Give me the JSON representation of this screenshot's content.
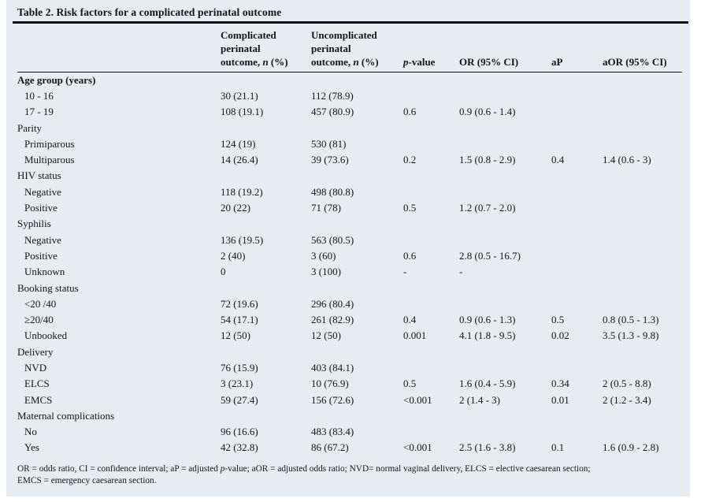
{
  "title": "Table 2. Risk factors for a complicated perinatal outcome",
  "colors": {
    "panel_background": "#e9ebf3",
    "text": "#14141e",
    "rule": "#101018"
  },
  "table": {
    "columns": [
      {
        "id": "risk-factor",
        "lines": [
          [
            ""
          ]
        ]
      },
      {
        "id": "complicated",
        "lines": [
          [
            "Complicated"
          ],
          [
            "perinatal"
          ],
          [
            "outcome, ",
            {
              "i": "n"
            },
            " (%)"
          ]
        ]
      },
      {
        "id": "uncomplicated",
        "lines": [
          [
            "Uncomplicated"
          ],
          [
            "perinatal"
          ],
          [
            "outcome, ",
            {
              "i": "n"
            },
            " (%)"
          ]
        ]
      },
      {
        "id": "p-value",
        "lines": [
          [
            {
              "i": "p"
            },
            "-value"
          ]
        ]
      },
      {
        "id": "or",
        "lines": [
          [
            "OR (95% CI)"
          ]
        ]
      },
      {
        "id": "ap",
        "lines": [
          [
            "aP"
          ]
        ]
      },
      {
        "id": "aor",
        "lines": [
          [
            "aOR (95% CI)"
          ]
        ]
      }
    ],
    "rows": [
      {
        "label": "Age group (years)",
        "indent": false,
        "bold": true,
        "values": [
          "",
          "",
          "",
          "",
          "",
          ""
        ]
      },
      {
        "label": "10 - 16",
        "indent": true,
        "bold": false,
        "values": [
          "30 (21.1)",
          "112 (78.9)",
          "",
          "",
          "",
          ""
        ]
      },
      {
        "label": "17 - 19",
        "indent": true,
        "bold": false,
        "values": [
          "108 (19.1)",
          "457 (80.9)",
          "0.6",
          "0.9 (0.6 - 1.4)",
          "",
          ""
        ]
      },
      {
        "label": "Parity",
        "indent": false,
        "bold": false,
        "values": [
          "",
          "",
          "",
          "",
          "",
          ""
        ]
      },
      {
        "label": "Primiparous",
        "indent": true,
        "bold": false,
        "values": [
          "124 (19)",
          "530 (81)",
          "",
          "",
          "",
          ""
        ]
      },
      {
        "label": "Multiparous",
        "indent": true,
        "bold": false,
        "values": [
          "14 (26.4)",
          "39 (73.6)",
          "0.2",
          "1.5 (0.8 - 2.9)",
          "0.4",
          "1.4 (0.6 - 3)"
        ]
      },
      {
        "label": "HIV status",
        "indent": false,
        "bold": false,
        "values": [
          "",
          "",
          "",
          "",
          "",
          ""
        ]
      },
      {
        "label": "Negative",
        "indent": true,
        "bold": false,
        "values": [
          "118 (19.2)",
          "498 (80.8)",
          "",
          "",
          "",
          ""
        ]
      },
      {
        "label": "Positive",
        "indent": true,
        "bold": false,
        "values": [
          "20 (22)",
          "71 (78)",
          "0.5",
          "1.2 (0.7 - 2.0)",
          "",
          ""
        ]
      },
      {
        "label": "Syphilis",
        "indent": false,
        "bold": false,
        "values": [
          "",
          "",
          "",
          "",
          "",
          ""
        ]
      },
      {
        "label": "Negative",
        "indent": true,
        "bold": false,
        "values": [
          "136 (19.5)",
          "563 (80.5)",
          "",
          "",
          "",
          ""
        ]
      },
      {
        "label": "Positive",
        "indent": true,
        "bold": false,
        "values": [
          "2 (40)",
          "3 (60)",
          "0.6",
          "2.8 (0.5 - 16.7)",
          "",
          ""
        ]
      },
      {
        "label": "Unknown",
        "indent": true,
        "bold": false,
        "values": [
          "0",
          "3 (100)",
          "-",
          "-",
          "",
          ""
        ]
      },
      {
        "label": "Booking status",
        "indent": false,
        "bold": false,
        "values": [
          "",
          "",
          "",
          "",
          "",
          ""
        ]
      },
      {
        "label": "<20 /40",
        "indent": true,
        "bold": false,
        "values": [
          "72 (19.6)",
          "296 (80.4)",
          "",
          "",
          "",
          ""
        ]
      },
      {
        "label": "≥20/40",
        "indent": true,
        "bold": false,
        "values": [
          "54 (17.1)",
          "261 (82.9)",
          "0.4",
          "0.9 (0.6 - 1.3)",
          "0.5",
          "0.8 (0.5 - 1.3)"
        ]
      },
      {
        "label": "Unbooked",
        "indent": true,
        "bold": false,
        "values": [
          "12 (50)",
          "12 (50)",
          "0.001",
          "4.1 (1.8 - 9.5)",
          "0.02",
          "3.5 (1.3 - 9.8)"
        ]
      },
      {
        "label": "Delivery",
        "indent": false,
        "bold": false,
        "values": [
          "",
          "",
          "",
          "",
          "",
          ""
        ]
      },
      {
        "label": "NVD",
        "indent": true,
        "bold": false,
        "values": [
          "76 (15.9)",
          "403 (84.1)",
          "",
          "",
          "",
          ""
        ]
      },
      {
        "label": "ELCS",
        "indent": true,
        "bold": false,
        "values": [
          "3 (23.1)",
          "10 (76.9)",
          "0.5",
          "1.6 (0.4 - 5.9)",
          "0.34",
          "2 (0.5 - 8.8)"
        ]
      },
      {
        "label": "EMCS",
        "indent": true,
        "bold": false,
        "values": [
          "59 (27.4)",
          "156 (72.6)",
          "<0.001",
          "2 (1.4 - 3)",
          "0.01",
          "2 (1.2 - 3.4)"
        ]
      },
      {
        "label": "Maternal complications",
        "indent": false,
        "bold": false,
        "values": [
          "",
          "",
          "",
          "",
          "",
          ""
        ]
      },
      {
        "label": "No",
        "indent": true,
        "bold": false,
        "values": [
          "96 (16.6)",
          "483 (83.4)",
          "",
          "",
          "",
          ""
        ]
      },
      {
        "label": "Yes",
        "indent": true,
        "bold": false,
        "values": [
          "42 (32.8)",
          "86 (67.2)",
          "<0.001",
          "2.5 (1.6 - 3.8)",
          "0.1",
          "1.6 (0.9 - 2.8)"
        ]
      }
    ]
  },
  "footnote_lines": [
    [
      "OR = odds ratio, CI = confidence interval; aP = adjusted ",
      {
        "i": "p"
      },
      "-value; aOR = adjusted odds ratio; NVD= normal vaginal delivery, ELCS = elective caesarean section;"
    ],
    [
      "EMCS = emergency caesarean section."
    ]
  ]
}
